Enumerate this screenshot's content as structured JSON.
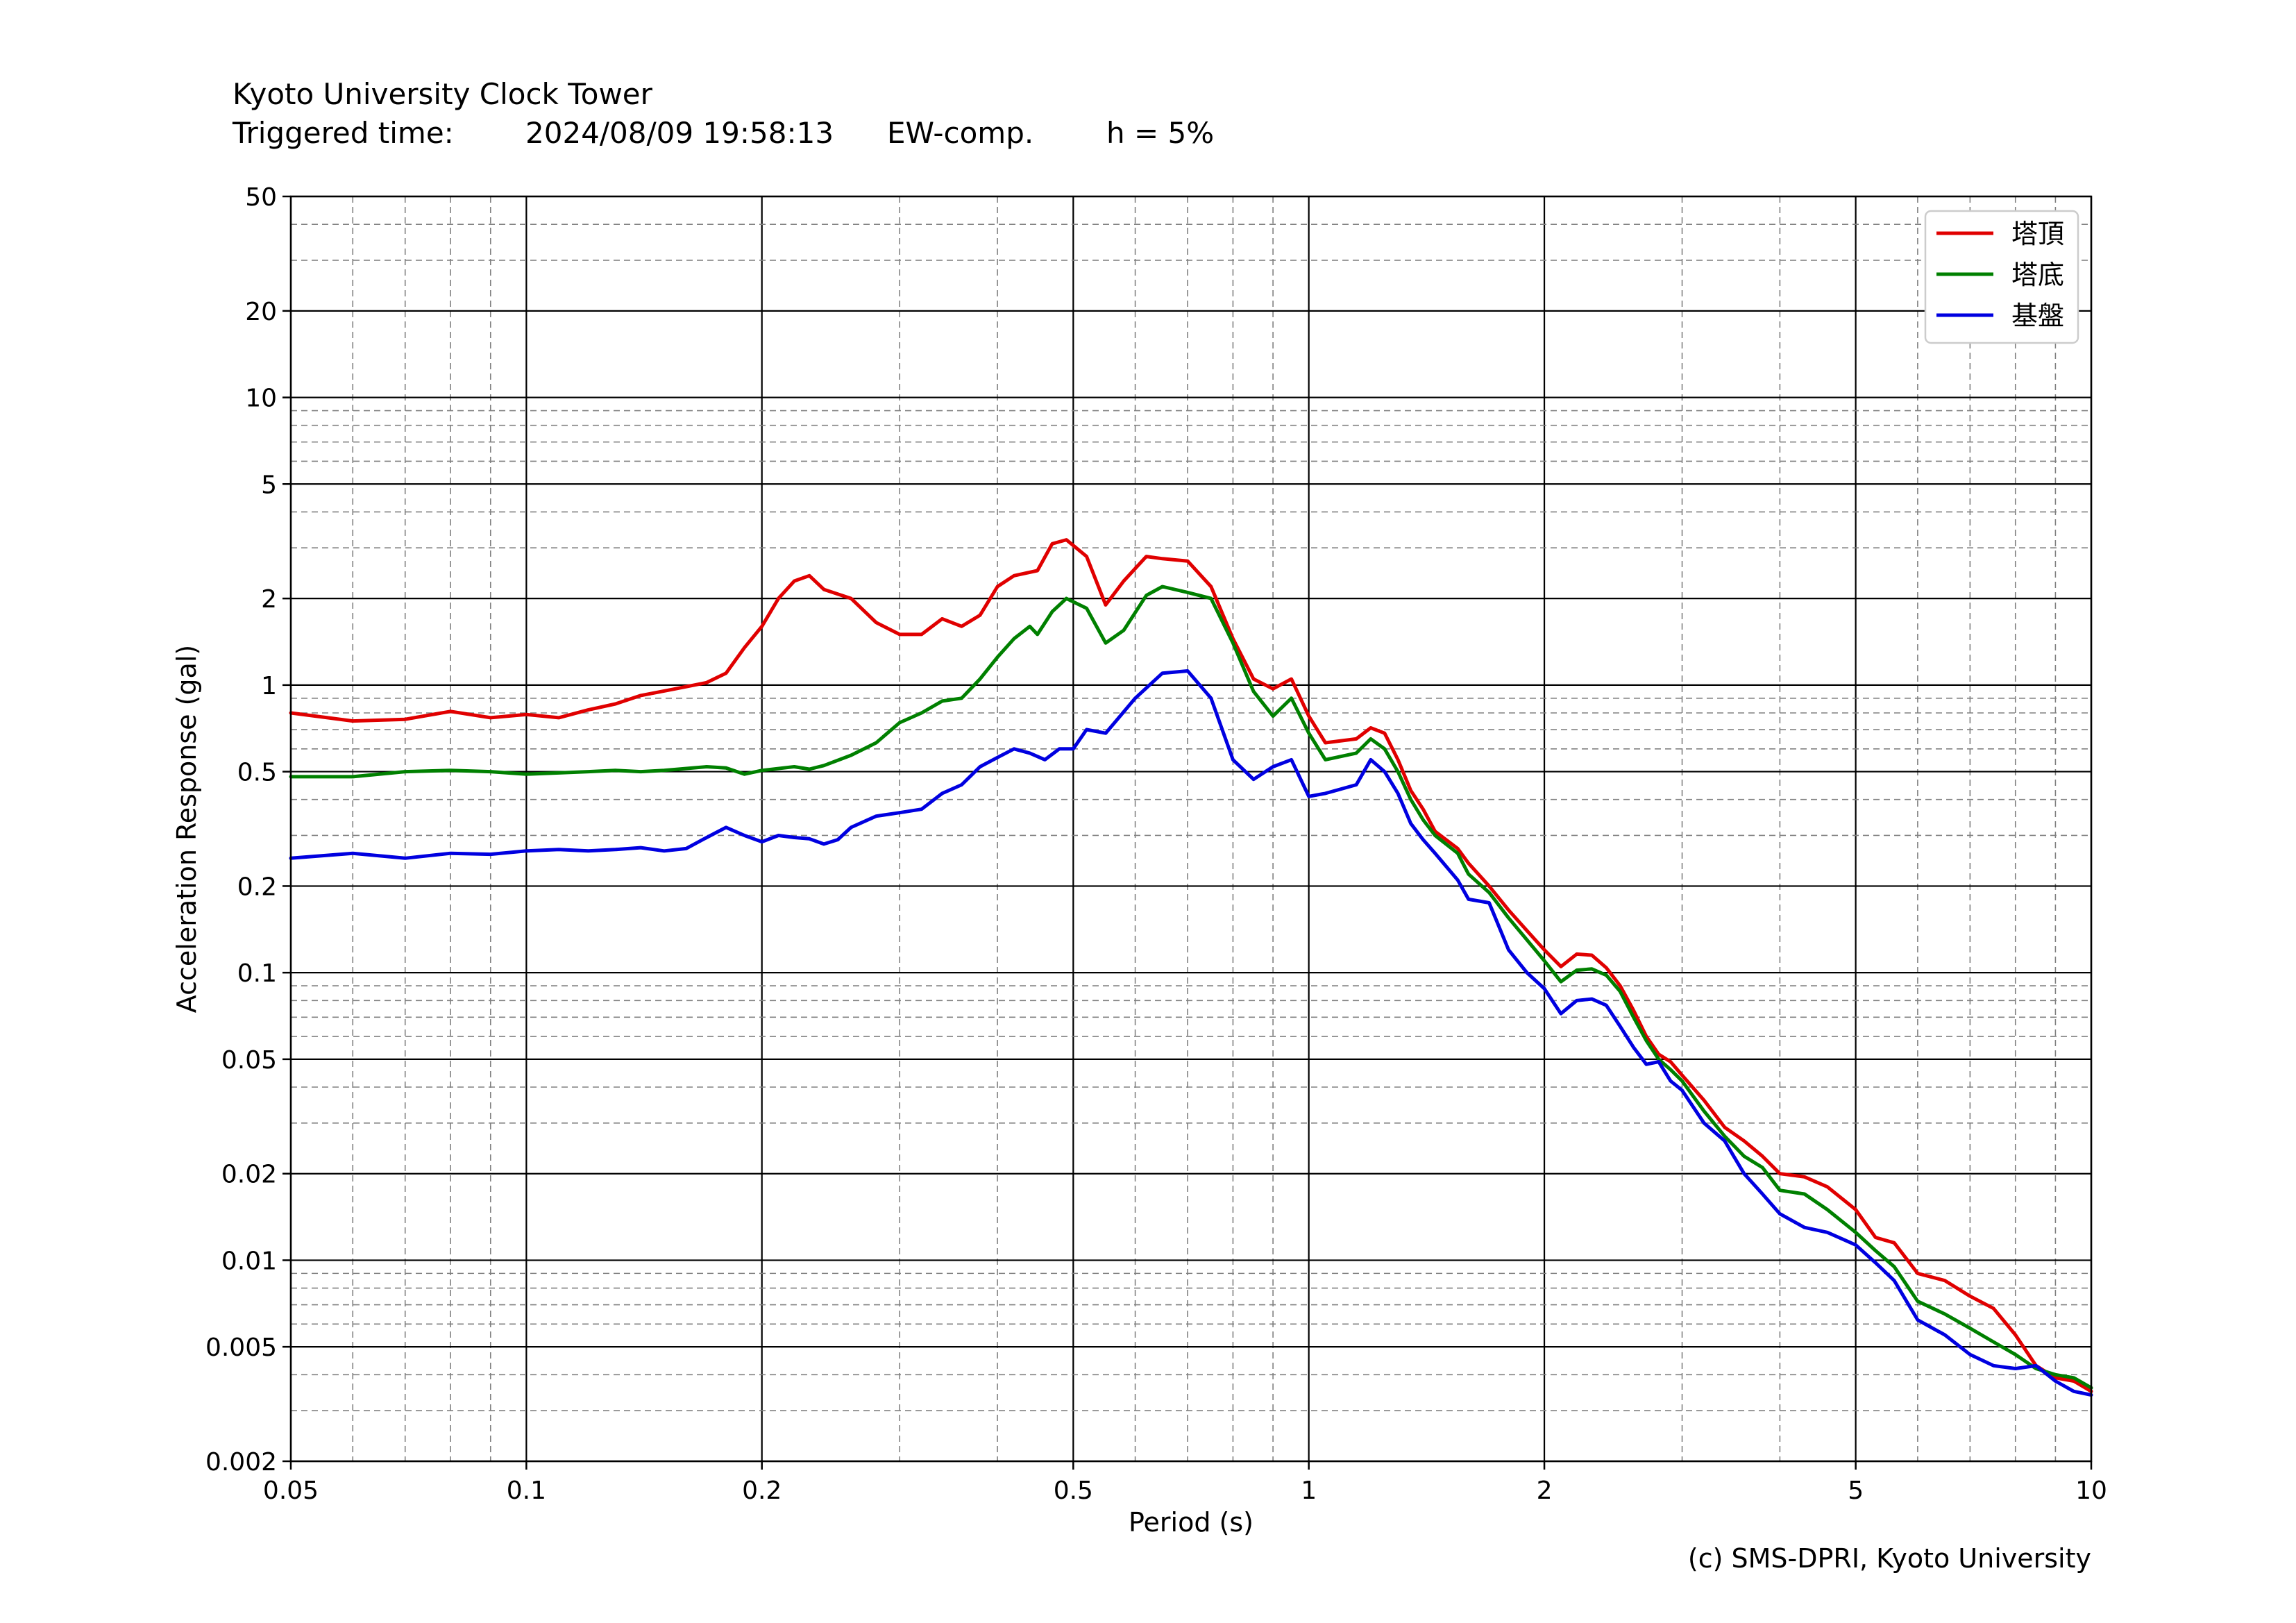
{
  "header": {
    "station": "Kyoto University Clock Tower",
    "triggered_label": "Triggered time:",
    "triggered_time": "2024/08/09 19:58:13",
    "component": "EW-comp.",
    "damping": "h = 5%"
  },
  "credit": "(c) SMS-DPRI, Kyoto University",
  "colors": {
    "series": [
      "#e00000",
      "#008000",
      "#0000e0"
    ],
    "grid_major": "#000000",
    "grid_minor": "#808080"
  },
  "chart_data": {
    "type": "line",
    "xlabel": "Period (s)",
    "ylabel": "Acceleration Response (gal)",
    "x_scale": "log",
    "y_scale": "log",
    "xlim": [
      0.05,
      10
    ],
    "ylim": [
      0.002,
      50
    ],
    "x_ticks": [
      "0.05",
      "0.1",
      "0.2",
      "0.5",
      "1",
      "2",
      "5",
      "10"
    ],
    "y_ticks": [
      "0.002",
      "0.005",
      "0.01",
      "0.02",
      "0.05",
      "0.1",
      "0.2",
      "0.5",
      "1",
      "2",
      "5",
      "10",
      "20",
      "50"
    ],
    "grid": true,
    "legend_position": "top-right",
    "series": [
      {
        "name": "塔頂",
        "points": [
          [
            0.05,
            0.8
          ],
          [
            0.06,
            0.75
          ],
          [
            0.07,
            0.76
          ],
          [
            0.08,
            0.81
          ],
          [
            0.09,
            0.77
          ],
          [
            0.1,
            0.79
          ],
          [
            0.11,
            0.77
          ],
          [
            0.12,
            0.82
          ],
          [
            0.13,
            0.86
          ],
          [
            0.14,
            0.92
          ],
          [
            0.155,
            0.97
          ],
          [
            0.17,
            1.02
          ],
          [
            0.18,
            1.1
          ],
          [
            0.19,
            1.35
          ],
          [
            0.2,
            1.6
          ],
          [
            0.21,
            2.0
          ],
          [
            0.22,
            2.3
          ],
          [
            0.23,
            2.4
          ],
          [
            0.24,
            2.15
          ],
          [
            0.26,
            2.0
          ],
          [
            0.28,
            1.65
          ],
          [
            0.3,
            1.5
          ],
          [
            0.32,
            1.5
          ],
          [
            0.34,
            1.7
          ],
          [
            0.36,
            1.6
          ],
          [
            0.38,
            1.75
          ],
          [
            0.4,
            2.2
          ],
          [
            0.42,
            2.4
          ],
          [
            0.45,
            2.5
          ],
          [
            0.47,
            3.1
          ],
          [
            0.49,
            3.2
          ],
          [
            0.52,
            2.8
          ],
          [
            0.55,
            1.9
          ],
          [
            0.58,
            2.3
          ],
          [
            0.62,
            2.8
          ],
          [
            0.65,
            2.75
          ],
          [
            0.7,
            2.7
          ],
          [
            0.75,
            2.2
          ],
          [
            0.8,
            1.45
          ],
          [
            0.85,
            1.05
          ],
          [
            0.9,
            0.97
          ],
          [
            0.95,
            1.05
          ],
          [
            1.0,
            0.78
          ],
          [
            1.05,
            0.63
          ],
          [
            1.15,
            0.65
          ],
          [
            1.2,
            0.71
          ],
          [
            1.25,
            0.68
          ],
          [
            1.3,
            0.55
          ],
          [
            1.35,
            0.43
          ],
          [
            1.4,
            0.37
          ],
          [
            1.45,
            0.31
          ],
          [
            1.55,
            0.27
          ],
          [
            1.6,
            0.24
          ],
          [
            1.7,
            0.2
          ],
          [
            1.8,
            0.165
          ],
          [
            1.9,
            0.14
          ],
          [
            2.0,
            0.12
          ],
          [
            2.1,
            0.105
          ],
          [
            2.2,
            0.116
          ],
          [
            2.3,
            0.115
          ],
          [
            2.4,
            0.104
          ],
          [
            2.5,
            0.09
          ],
          [
            2.6,
            0.074
          ],
          [
            2.7,
            0.06
          ],
          [
            2.8,
            0.052
          ],
          [
            2.9,
            0.049
          ],
          [
            3.0,
            0.044
          ],
          [
            3.2,
            0.036
          ],
          [
            3.4,
            0.029
          ],
          [
            3.6,
            0.026
          ],
          [
            3.8,
            0.023
          ],
          [
            4.0,
            0.02
          ],
          [
            4.3,
            0.0195
          ],
          [
            4.6,
            0.018
          ],
          [
            5.0,
            0.015
          ],
          [
            5.3,
            0.012
          ],
          [
            5.6,
            0.0115
          ],
          [
            6.0,
            0.009
          ],
          [
            6.5,
            0.0085
          ],
          [
            7.0,
            0.0075
          ],
          [
            7.5,
            0.0068
          ],
          [
            8.0,
            0.0055
          ],
          [
            8.5,
            0.0043
          ],
          [
            9.0,
            0.0039
          ],
          [
            9.5,
            0.0038
          ],
          [
            10.0,
            0.0035
          ]
        ]
      },
      {
        "name": "塔底",
        "points": [
          [
            0.05,
            0.48
          ],
          [
            0.06,
            0.48
          ],
          [
            0.07,
            0.5
          ],
          [
            0.08,
            0.505
          ],
          [
            0.09,
            0.5
          ],
          [
            0.1,
            0.49
          ],
          [
            0.11,
            0.495
          ],
          [
            0.12,
            0.5
          ],
          [
            0.13,
            0.505
          ],
          [
            0.14,
            0.5
          ],
          [
            0.15,
            0.505
          ],
          [
            0.17,
            0.52
          ],
          [
            0.18,
            0.515
          ],
          [
            0.19,
            0.49
          ],
          [
            0.2,
            0.505
          ],
          [
            0.22,
            0.52
          ],
          [
            0.23,
            0.51
          ],
          [
            0.24,
            0.525
          ],
          [
            0.26,
            0.57
          ],
          [
            0.28,
            0.63
          ],
          [
            0.3,
            0.74
          ],
          [
            0.32,
            0.8
          ],
          [
            0.34,
            0.88
          ],
          [
            0.36,
            0.9
          ],
          [
            0.38,
            1.05
          ],
          [
            0.4,
            1.25
          ],
          [
            0.42,
            1.45
          ],
          [
            0.44,
            1.6
          ],
          [
            0.45,
            1.5
          ],
          [
            0.47,
            1.8
          ],
          [
            0.49,
            2.0
          ],
          [
            0.52,
            1.85
          ],
          [
            0.55,
            1.4
          ],
          [
            0.58,
            1.55
          ],
          [
            0.62,
            2.05
          ],
          [
            0.65,
            2.2
          ],
          [
            0.7,
            2.1
          ],
          [
            0.75,
            2.0
          ],
          [
            0.8,
            1.4
          ],
          [
            0.85,
            0.95
          ],
          [
            0.9,
            0.78
          ],
          [
            0.95,
            0.9
          ],
          [
            1.0,
            0.68
          ],
          [
            1.05,
            0.55
          ],
          [
            1.15,
            0.58
          ],
          [
            1.2,
            0.65
          ],
          [
            1.25,
            0.6
          ],
          [
            1.3,
            0.5
          ],
          [
            1.35,
            0.4
          ],
          [
            1.4,
            0.34
          ],
          [
            1.45,
            0.3
          ],
          [
            1.55,
            0.26
          ],
          [
            1.6,
            0.22
          ],
          [
            1.7,
            0.19
          ],
          [
            1.8,
            0.155
          ],
          [
            1.9,
            0.13
          ],
          [
            2.0,
            0.11
          ],
          [
            2.1,
            0.093
          ],
          [
            2.2,
            0.102
          ],
          [
            2.3,
            0.103
          ],
          [
            2.4,
            0.098
          ],
          [
            2.5,
            0.086
          ],
          [
            2.6,
            0.07
          ],
          [
            2.7,
            0.058
          ],
          [
            2.8,
            0.05
          ],
          [
            2.9,
            0.046
          ],
          [
            3.0,
            0.042
          ],
          [
            3.2,
            0.033
          ],
          [
            3.4,
            0.027
          ],
          [
            3.6,
            0.023
          ],
          [
            3.8,
            0.021
          ],
          [
            4.0,
            0.0175
          ],
          [
            4.3,
            0.017
          ],
          [
            4.6,
            0.015
          ],
          [
            5.0,
            0.0125
          ],
          [
            5.3,
            0.0108
          ],
          [
            5.6,
            0.0095
          ],
          [
            6.0,
            0.0072
          ],
          [
            6.5,
            0.0065
          ],
          [
            7.0,
            0.0058
          ],
          [
            7.5,
            0.0052
          ],
          [
            8.0,
            0.0047
          ],
          [
            8.5,
            0.0042
          ],
          [
            9.0,
            0.004
          ],
          [
            9.5,
            0.0039
          ],
          [
            10.0,
            0.0036
          ]
        ]
      },
      {
        "name": "基盤",
        "points": [
          [
            0.05,
            0.25
          ],
          [
            0.06,
            0.26
          ],
          [
            0.07,
            0.25
          ],
          [
            0.08,
            0.26
          ],
          [
            0.09,
            0.258
          ],
          [
            0.1,
            0.265
          ],
          [
            0.11,
            0.268
          ],
          [
            0.12,
            0.265
          ],
          [
            0.13,
            0.268
          ],
          [
            0.14,
            0.272
          ],
          [
            0.15,
            0.265
          ],
          [
            0.16,
            0.27
          ],
          [
            0.17,
            0.295
          ],
          [
            0.18,
            0.32
          ],
          [
            0.19,
            0.3
          ],
          [
            0.2,
            0.285
          ],
          [
            0.21,
            0.3
          ],
          [
            0.22,
            0.295
          ],
          [
            0.23,
            0.292
          ],
          [
            0.24,
            0.28
          ],
          [
            0.25,
            0.29
          ],
          [
            0.26,
            0.32
          ],
          [
            0.28,
            0.35
          ],
          [
            0.3,
            0.36
          ],
          [
            0.32,
            0.37
          ],
          [
            0.34,
            0.42
          ],
          [
            0.36,
            0.45
          ],
          [
            0.38,
            0.52
          ],
          [
            0.4,
            0.56
          ],
          [
            0.42,
            0.6
          ],
          [
            0.44,
            0.58
          ],
          [
            0.46,
            0.55
          ],
          [
            0.48,
            0.6
          ],
          [
            0.5,
            0.6
          ],
          [
            0.52,
            0.7
          ],
          [
            0.55,
            0.68
          ],
          [
            0.6,
            0.9
          ],
          [
            0.65,
            1.1
          ],
          [
            0.7,
            1.12
          ],
          [
            0.75,
            0.9
          ],
          [
            0.8,
            0.55
          ],
          [
            0.85,
            0.47
          ],
          [
            0.9,
            0.52
          ],
          [
            0.95,
            0.55
          ],
          [
            1.0,
            0.41
          ],
          [
            1.05,
            0.42
          ],
          [
            1.15,
            0.45
          ],
          [
            1.2,
            0.55
          ],
          [
            1.25,
            0.5
          ],
          [
            1.3,
            0.42
          ],
          [
            1.35,
            0.33
          ],
          [
            1.4,
            0.29
          ],
          [
            1.45,
            0.26
          ],
          [
            1.55,
            0.21
          ],
          [
            1.6,
            0.18
          ],
          [
            1.7,
            0.175
          ],
          [
            1.8,
            0.12
          ],
          [
            1.9,
            0.1
          ],
          [
            2.0,
            0.088
          ],
          [
            2.1,
            0.072
          ],
          [
            2.2,
            0.08
          ],
          [
            2.3,
            0.081
          ],
          [
            2.4,
            0.077
          ],
          [
            2.5,
            0.065
          ],
          [
            2.6,
            0.055
          ],
          [
            2.7,
            0.048
          ],
          [
            2.8,
            0.049
          ],
          [
            2.9,
            0.042
          ],
          [
            3.0,
            0.039
          ],
          [
            3.2,
            0.03
          ],
          [
            3.4,
            0.026
          ],
          [
            3.6,
            0.02
          ],
          [
            3.8,
            0.017
          ],
          [
            4.0,
            0.0145
          ],
          [
            4.3,
            0.013
          ],
          [
            4.6,
            0.0125
          ],
          [
            5.0,
            0.0113
          ],
          [
            5.3,
            0.0098
          ],
          [
            5.6,
            0.0085
          ],
          [
            6.0,
            0.0062
          ],
          [
            6.5,
            0.0055
          ],
          [
            7.0,
            0.0047
          ],
          [
            7.5,
            0.0043
          ],
          [
            8.0,
            0.0042
          ],
          [
            8.5,
            0.0043
          ],
          [
            9.0,
            0.0038
          ],
          [
            9.5,
            0.0035
          ],
          [
            10.0,
            0.0034
          ]
        ]
      }
    ]
  }
}
